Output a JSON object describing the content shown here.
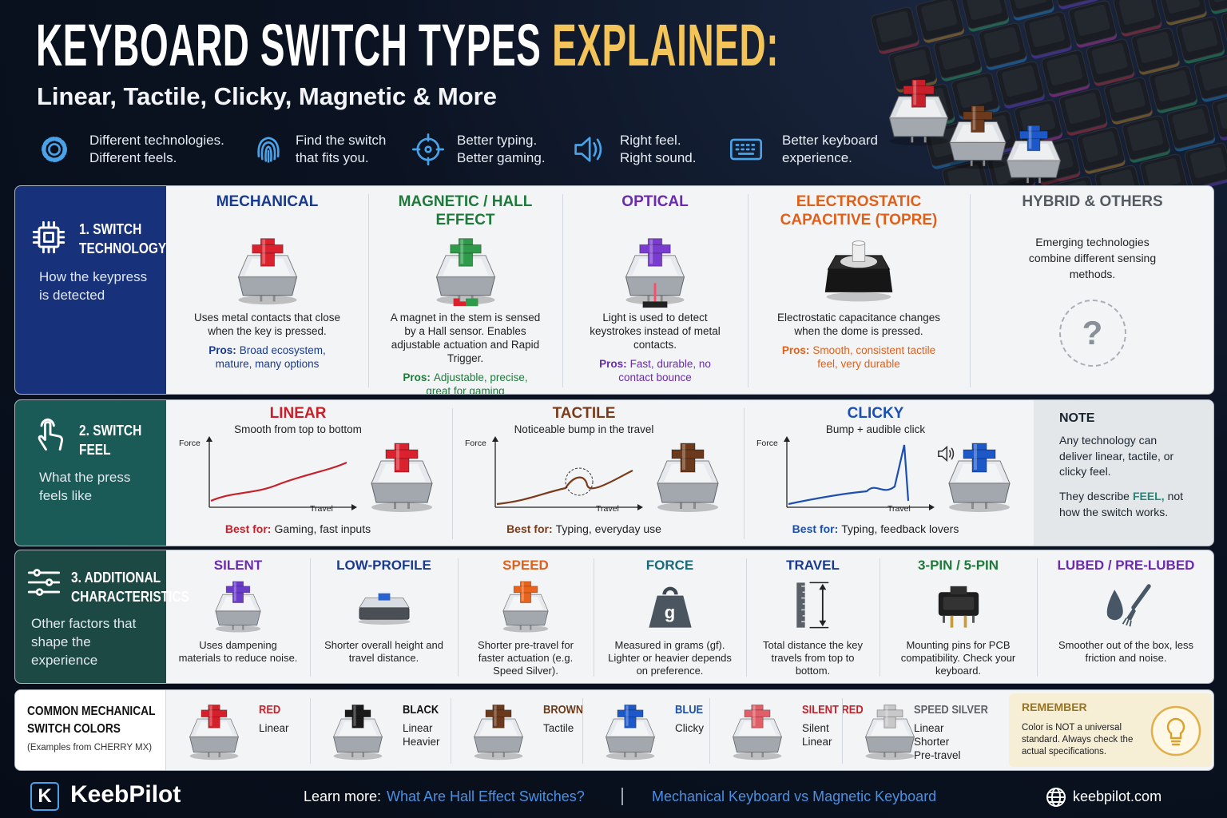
{
  "header": {
    "title_main": "KEYBOARD SWITCH TYPES",
    "title_accent": "EXPLAINED:",
    "subtitle": "Linear, Tactile, Clicky, Magnetic & More",
    "highlights": [
      [
        "Different technologies.",
        "Different feels."
      ],
      [
        "Find the switch",
        "that fits you."
      ],
      [
        "Better typing.",
        "Better gaming."
      ],
      [
        "Right feel.",
        "Right sound."
      ],
      [
        "Better keyboard",
        "experience."
      ]
    ]
  },
  "technology": {
    "title": "1. SWITCH TECHNOLOGY",
    "description": "How the keypress is detected",
    "items": [
      {
        "title": "MECHANICAL",
        "text": "Uses metal contacts that close when the key is pressed.",
        "pros_label": "Pros:",
        "pros": "Broad ecosystem, mature, many options"
      },
      {
        "title": "MAGNETIC / HALL EFFECT",
        "text": "A magnet in the stem is sensed by a Hall sensor. Enables adjustable actuation and Rapid Trigger.",
        "pros_label": "Pros:",
        "pros": "Adjustable, precise, great for gaming"
      },
      {
        "title": "OPTICAL",
        "text": "Light is used to detect keystrokes instead of metal contacts.",
        "pros_label": "Pros:",
        "pros": "Fast, durable, no contact bounce"
      },
      {
        "title": "ELECTROSTATIC CAPACITIVE (TOPRE)",
        "text": "Electrostatic capacitance changes when the dome is pressed.",
        "pros_label": "Pros:",
        "pros": "Smooth, consistent tactile feel, very durable"
      },
      {
        "title": "HYBRID & OTHERS",
        "text": "Emerging technologies combine different sensing methods.",
        "symbol": "?"
      }
    ]
  },
  "feel": {
    "title": "2. SWITCH FEEL",
    "description": "What the press feels like",
    "items": [
      {
        "title": "LINEAR",
        "subtitle": "Smooth from top to bottom",
        "y_axis": "Force",
        "x_axis": "Travel",
        "best_label": "Best for:",
        "best": "Gaming, fast inputs"
      },
      {
        "title": "TACTILE",
        "subtitle": "Noticeable bump in the travel",
        "y_axis": "Force",
        "x_axis": "Travel",
        "best_label": "Best for:",
        "best": "Typing, everyday use"
      },
      {
        "title": "CLICKY",
        "subtitle": "Bump + audible click",
        "y_axis": "Force",
        "x_axis": "Travel",
        "best_label": "Best for:",
        "best": "Typing, feedback lovers"
      }
    ],
    "note": {
      "title": "NOTE",
      "text": "Any technology can deliver linear, tactile, or clicky feel.",
      "text2_before": "They describe",
      "text2_emphasis": "FEEL,",
      "text2_after": "not how the switch works."
    }
  },
  "characteristics": {
    "title": "3. ADDITIONAL CHARACTERISTICS",
    "description": "Other factors that shape the experience",
    "items": [
      {
        "title": "SILENT",
        "text": "Uses dampening materials to reduce noise."
      },
      {
        "title": "LOW-PROFILE",
        "text": "Shorter overall height and travel distance."
      },
      {
        "title": "SPEED",
        "text": "Shorter pre-travel for faster actuation (e.g. Speed Silver)."
      },
      {
        "title": "FORCE",
        "text": "Measured in grams (gf). Lighter or heavier depends on preference.",
        "icon_label": "g"
      },
      {
        "title": "TRAVEL",
        "text": "Total distance the key travels from top to bottom."
      },
      {
        "title": "3-PIN / 5-PIN",
        "text": "Mounting pins for PCB compatibility. Check your keyboard."
      },
      {
        "title": "LUBED / PRE-LUBED",
        "text": "Smoother out of the box, less friction and noise."
      }
    ]
  },
  "colors": {
    "title": "COMMON MECHANICAL SWITCH COLORS",
    "note": "(Examples from CHERRY MX)",
    "items": [
      {
        "name": "RED",
        "lines": [
          "Linear"
        ]
      },
      {
        "name": "BLACK",
        "lines": [
          "Linear",
          "Heavier"
        ]
      },
      {
        "name": "BROWN",
        "lines": [
          "Tactile"
        ]
      },
      {
        "name": "BLUE",
        "lines": [
          "Clicky"
        ]
      },
      {
        "name": "SILENT RED",
        "lines": [
          "Silent",
          "Linear"
        ]
      },
      {
        "name": "SPEED SILVER",
        "lines": [
          "Linear",
          "Shorter",
          "Pre-travel"
        ]
      }
    ],
    "remember": {
      "title": "REMEMBER",
      "text": "Color is NOT a universal standard. Always check the actual specifications."
    }
  },
  "footer": {
    "brand_mark": "K",
    "brand": "KeebPilot",
    "learn_label": "Learn more:",
    "links": [
      "What Are Hall Effect Switches?",
      "Mechanical Keyboard vs Magnetic Keyboard"
    ],
    "site": "keebpilot.com"
  }
}
